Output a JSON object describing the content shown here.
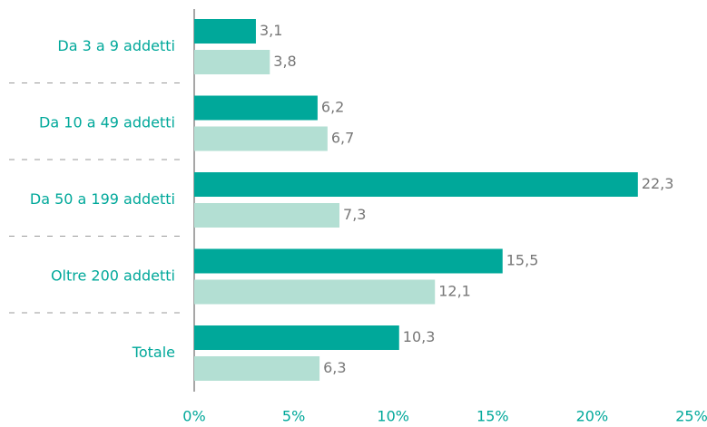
{
  "chart_data": {
    "type": "hbar",
    "categories": [
      "Da 3 a 9 addetti",
      "Da 10 a 49 addetti",
      "Da 50 a 199 addetti",
      "Oltre 200 addetti",
      "Totale"
    ],
    "series": [
      {
        "color": "#00a89a",
        "values": [
          3.1,
          6.2,
          22.3,
          15.5,
          10.3
        ],
        "value_labels": [
          "3,1",
          "6,2",
          "22,3",
          "15,5",
          "10,3"
        ]
      },
      {
        "color": "#b3dfd3",
        "values": [
          3.8,
          6.7,
          7.3,
          12.1,
          6.3
        ],
        "value_labels": [
          "3,8",
          "6,7",
          "7,3",
          "12,1",
          "6,3"
        ]
      }
    ],
    "xlim": [
      0,
      25
    ],
    "xticks": [
      {
        "value": 0,
        "label": "0%"
      },
      {
        "value": 5,
        "label": "5%"
      },
      {
        "value": 10,
        "label": "10%"
      },
      {
        "value": 15,
        "label": "15%"
      },
      {
        "value": 20,
        "label": "20%"
      },
      {
        "value": 25,
        "label": "25%"
      }
    ]
  }
}
